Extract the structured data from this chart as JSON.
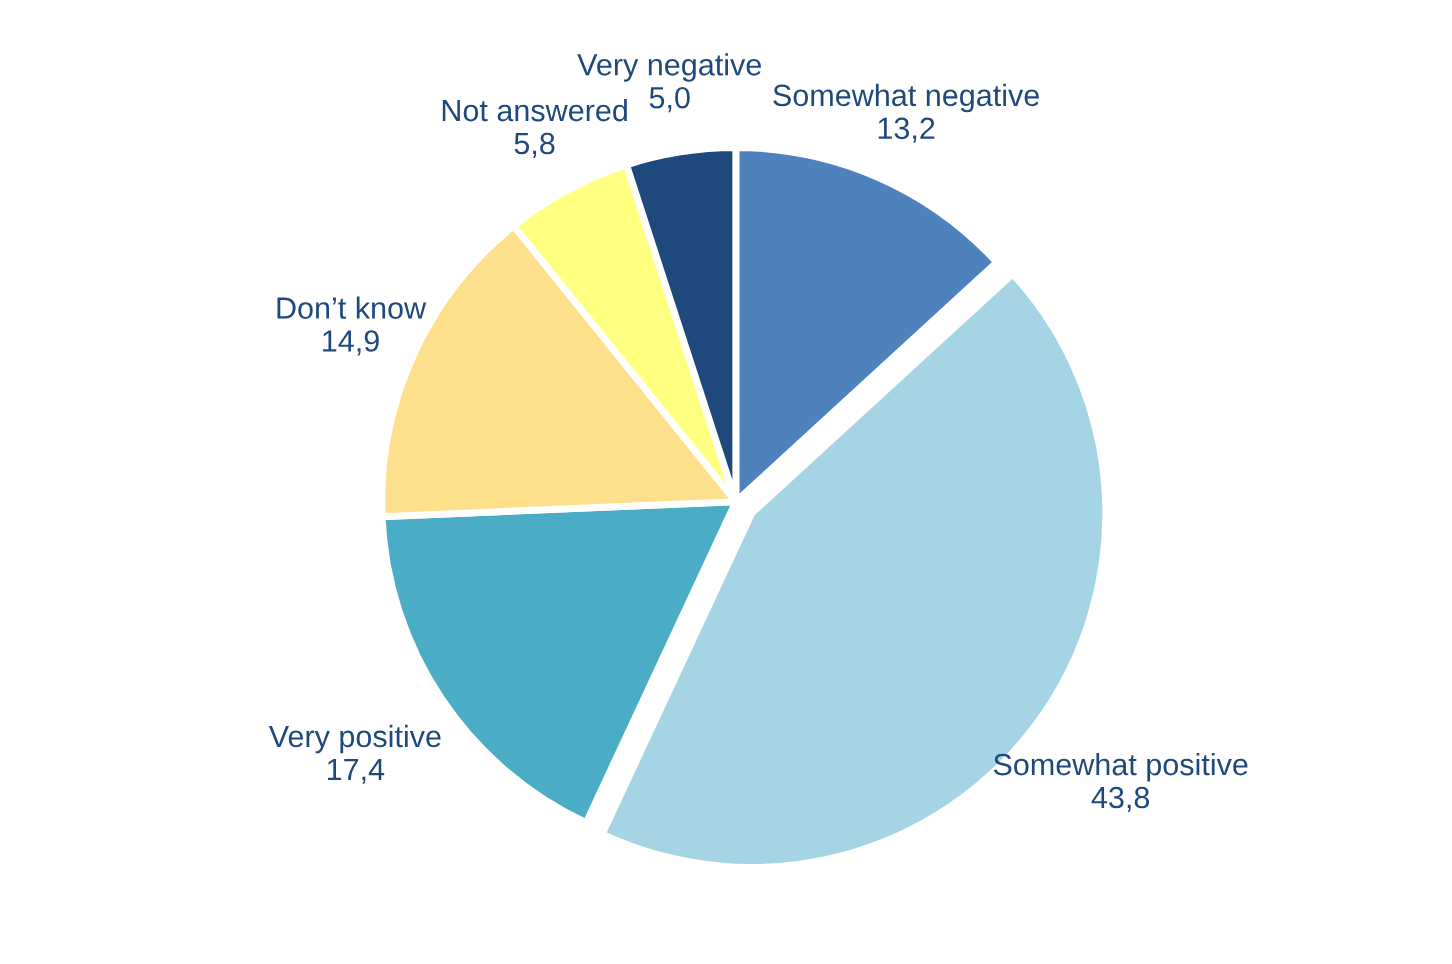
{
  "chart_data": {
    "type": "pie",
    "categories": [
      "Somewhat negative",
      "Somewhat positive",
      "Very positive",
      "Don’t know",
      "Not answered",
      "Very negative"
    ],
    "values": [
      13.2,
      43.8,
      17.4,
      14.9,
      5.8,
      5.0
    ],
    "value_labels": [
      "13,2",
      "43,8",
      "17,4",
      "14,9",
      "5,8",
      "5,0"
    ],
    "colors": [
      "#4f81bd",
      "#a5d5e5",
      "#4bacc6",
      "#fedf8c",
      "#ffff80",
      "#1f497d"
    ]
  }
}
